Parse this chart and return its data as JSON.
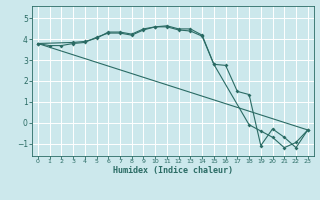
{
  "xlabel": "Humidex (Indice chaleur)",
  "bg_color": "#cce8ec",
  "grid_color": "#ffffff",
  "line_color": "#2a6b64",
  "xlim": [
    -0.5,
    23.5
  ],
  "ylim": [
    -1.6,
    5.6
  ],
  "yticks": [
    -1,
    0,
    1,
    2,
    3,
    4,
    5
  ],
  "xticks": [
    0,
    1,
    2,
    3,
    4,
    5,
    6,
    7,
    8,
    9,
    10,
    11,
    12,
    13,
    14,
    15,
    16,
    17,
    18,
    19,
    20,
    21,
    22,
    23
  ],
  "curve1_x": [
    0,
    1,
    2,
    3,
    4,
    5,
    6,
    7,
    8,
    9,
    10,
    11,
    12,
    13,
    14,
    15,
    16,
    17,
    18,
    19,
    20,
    21,
    22,
    23
  ],
  "curve1_y": [
    3.8,
    3.7,
    3.7,
    3.8,
    3.85,
    4.1,
    4.3,
    4.3,
    4.2,
    4.45,
    4.6,
    4.65,
    4.5,
    4.5,
    4.2,
    2.8,
    2.75,
    1.5,
    1.35,
    -1.1,
    -0.3,
    -0.7,
    -1.2,
    -0.35
  ],
  "curve2_x": [
    0,
    3,
    4,
    5,
    6,
    7,
    8,
    9,
    10,
    11,
    12,
    13,
    14,
    15,
    18,
    19,
    20,
    21,
    22,
    23
  ],
  "curve2_y": [
    3.8,
    3.85,
    3.9,
    4.05,
    4.35,
    4.35,
    4.25,
    4.5,
    4.6,
    4.6,
    4.45,
    4.4,
    4.15,
    2.8,
    -0.1,
    -0.4,
    -0.7,
    -1.2,
    -0.95,
    -0.35
  ],
  "curve3_x": [
    0,
    23
  ],
  "curve3_y": [
    3.8,
    -0.35
  ]
}
